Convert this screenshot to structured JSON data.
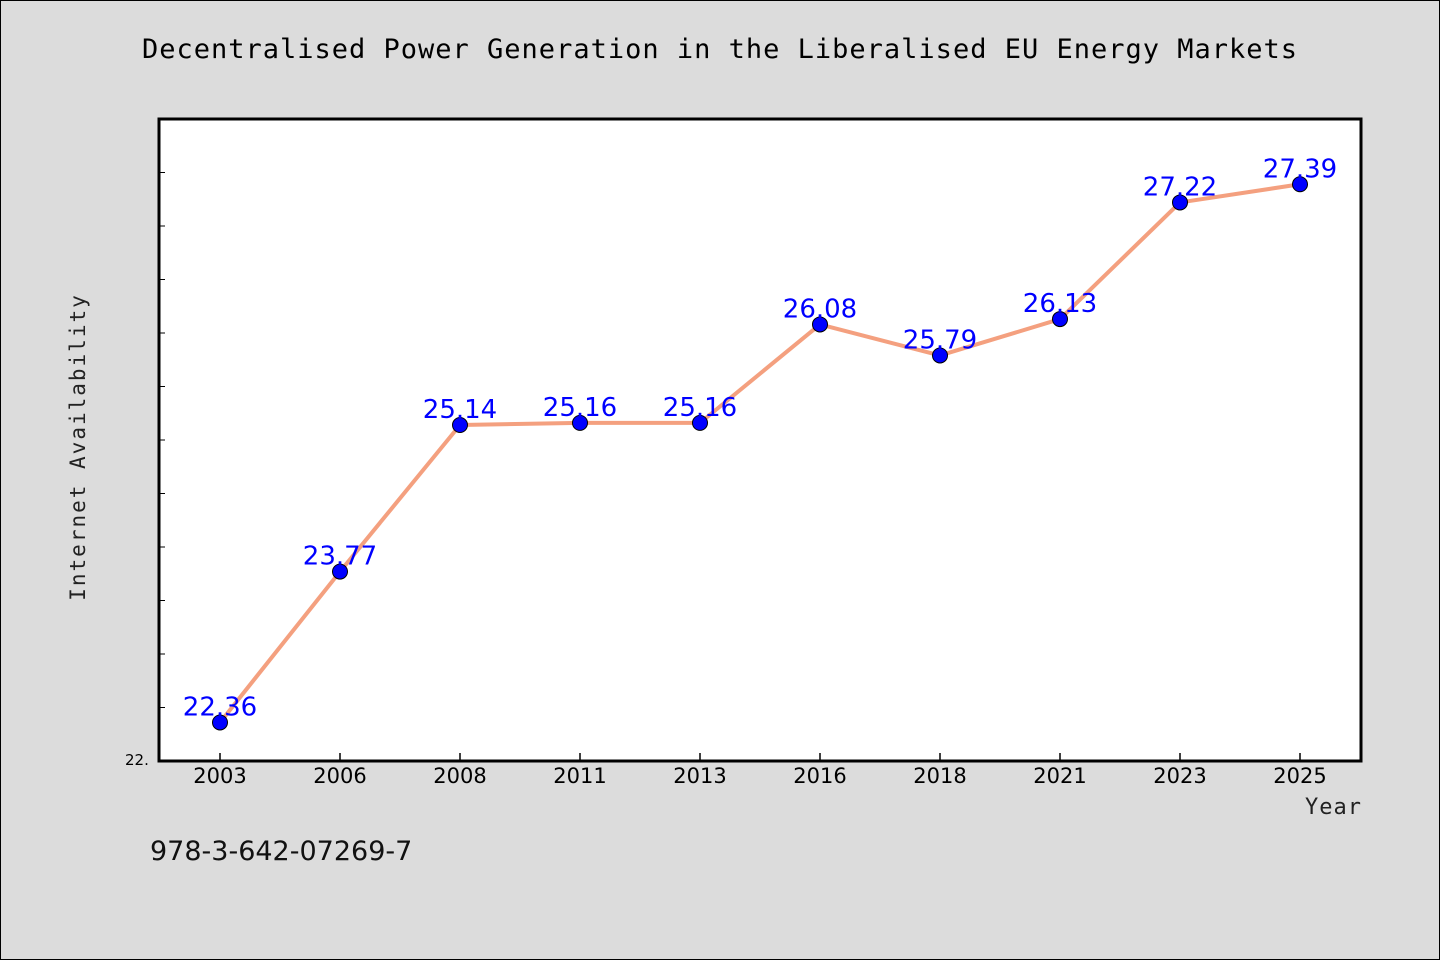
{
  "chart_data": {
    "type": "line",
    "title": "Decentralised Power Generation in the Liberalised EU Energy Markets",
    "xlabel": "Year",
    "ylabel": "Internet Availability",
    "categories": [
      "2003",
      "2006",
      "2008",
      "2011",
      "2013",
      "2016",
      "2018",
      "2021",
      "2023",
      "2025"
    ],
    "values": [
      22.36,
      23.77,
      25.14,
      25.16,
      25.16,
      26.08,
      25.79,
      26.13,
      27.22,
      27.39
    ],
    "data_labels": [
      "22.36",
      "23.77",
      "25.14",
      "25.16",
      "25.16",
      "26.08",
      "25.79",
      "26.13",
      "27.22",
      "27.39"
    ],
    "y_min_label": "22.",
    "ylim": [
      22.0,
      28.0
    ],
    "y_minor_tick_step": 0.5,
    "grid": false,
    "line_color": "#f4a07f",
    "marker_color": "#0000ff",
    "label_color": "#0000ff",
    "plot_background": "#ffffff",
    "page_background": "#dcdcdc"
  },
  "footer": {
    "code": "978-3-642-07269-7"
  }
}
